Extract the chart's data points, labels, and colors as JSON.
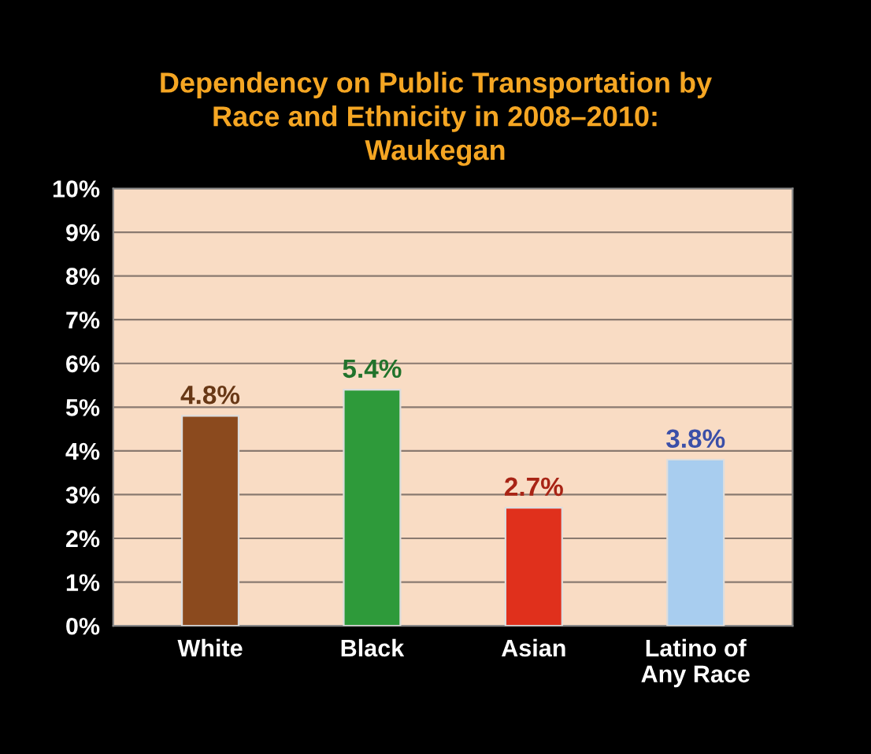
{
  "chart_data": {
    "type": "bar",
    "title": "Dependency on Public Transportation by\nRace and Ethnicity in 2008–2010:\nWaukegan",
    "categories": [
      "White",
      "Black",
      "Asian",
      "Latino of\nAny Race"
    ],
    "values": [
      4.8,
      5.4,
      2.7,
      3.8
    ],
    "value_labels": [
      "4.8%",
      "5.4%",
      "2.7%",
      "3.8%"
    ],
    "colors": [
      "#8b4a1e",
      "#2e9a3a",
      "#e0301c",
      "#a8cdef"
    ],
    "ylim": [
      0,
      10
    ],
    "yticks": [
      {
        "value": 0,
        "label": "0%"
      },
      {
        "value": 1,
        "label": "1%"
      },
      {
        "value": 2,
        "label": "2%"
      },
      {
        "value": 3,
        "label": "3%"
      },
      {
        "value": 4,
        "label": "4%"
      },
      {
        "value": 5,
        "label": "5%"
      },
      {
        "value": 6,
        "label": "6%"
      },
      {
        "value": 7,
        "label": "7%"
      },
      {
        "value": 8,
        "label": "8%"
      },
      {
        "value": 9,
        "label": "9%"
      },
      {
        "value": 10,
        "label": "10%"
      }
    ],
    "grid": "y"
  }
}
